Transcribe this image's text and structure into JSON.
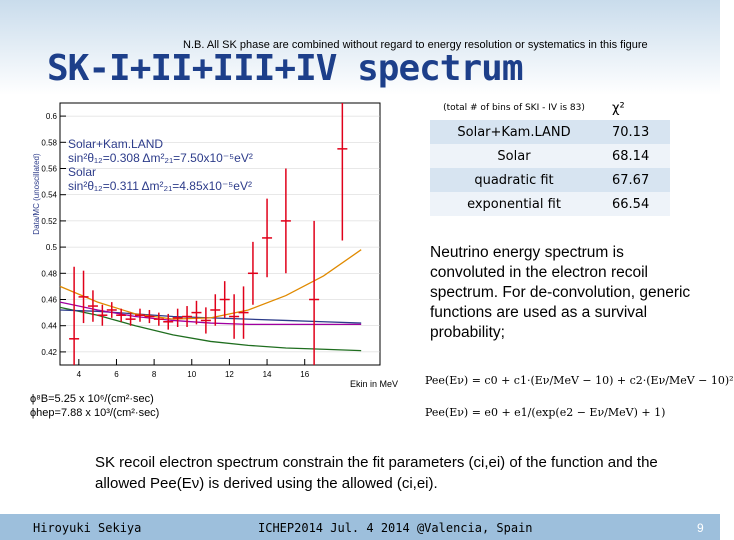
{
  "header": {
    "note": "N.B. All SK phase are combined without regard to energy resolution or systematics in this figure",
    "title": "SK-I+II+III+IV spectrum"
  },
  "legend": {
    "line1": "Solar+Kam.LAND",
    "line2": "sin²θ₁₂=0.308 Δm²₂₁=7.50x10⁻⁵eV²",
    "line3": "Solar",
    "line4": "sin²θ₁₂=0.311 Δm²₂₁=4.85x10⁻⁵eV²"
  },
  "flux": {
    "line1": "ϕ⁸B=5.25 x 10⁶/(cm²·sec)",
    "line2": "ϕhep=7.88 x 10³/(cm²·sec)"
  },
  "fit_table": {
    "header_note": "(total # of bins of SKI - IV is 83)",
    "header_chi": "χ²",
    "rows": [
      {
        "name": "Solar+Kam.LAND",
        "chi2": "70.13"
      },
      {
        "name": "Solar",
        "chi2": "68.14"
      },
      {
        "name": "quadratic fit",
        "chi2": "67.67"
      },
      {
        "name": "exponential fit",
        "chi2": "66.54"
      }
    ]
  },
  "description": "Neutrino energy spectrum is convoluted in the electron recoil spectrum. For de-convolution, generic functions are used as a survival probability;",
  "formula": {
    "row1": "Pee(Eν) = c0 + c1·(Eν/MeV − 10) + c2·(Eν/MeV − 10)²",
    "row2": "Pee(Eν) = e0 + e1/(exp(e2 − Eν/MeV) + 1)"
  },
  "bottom_text": "SK recoil electron spectrum constrain the fit parameters (ci,ei) of the function and the allowed Pee(Eν) is derived using the allowed (ci,ei).",
  "footer": {
    "author": "Hiroyuki Sekiya",
    "event": "ICHEP2014  Jul. 4 2014  @Valencia, Spain",
    "page": "9"
  },
  "colors": {
    "title": "#1d3f8a",
    "footer_bar": "#9dbfdc",
    "data": "#e0001a",
    "solar_kamland": "#1f6e1f",
    "solar": "#2d3c8a",
    "quadratic": "#e08a00",
    "exponential": "#a000a0"
  },
  "chart_data": {
    "type": "scatter",
    "ylabel": "Data/MC (unoscillated)",
    "xlabel": "Ekin in MeV",
    "xlim": [
      3,
      20
    ],
    "ylim": [
      0.41,
      0.61
    ],
    "x_ticks": [
      "4",
      "6",
      "8",
      "10",
      "12",
      "14",
      "16"
    ],
    "y_ticks": [
      "0.42",
      "0.44",
      "0.46",
      "0.48",
      "0.5",
      "0.52",
      "0.54",
      "0.56",
      "0.58",
      "0.6"
    ],
    "data_points": [
      {
        "x": 3.75,
        "y": 0.43,
        "err": 0.055
      },
      {
        "x": 4.25,
        "y": 0.462,
        "err": 0.02
      },
      {
        "x": 4.75,
        "y": 0.455,
        "err": 0.012
      },
      {
        "x": 5.25,
        "y": 0.448,
        "err": 0.008
      },
      {
        "x": 5.75,
        "y": 0.452,
        "err": 0.006
      },
      {
        "x": 6.25,
        "y": 0.448,
        "err": 0.005
      },
      {
        "x": 6.75,
        "y": 0.445,
        "err": 0.005
      },
      {
        "x": 7.25,
        "y": 0.448,
        "err": 0.005
      },
      {
        "x": 7.75,
        "y": 0.447,
        "err": 0.005
      },
      {
        "x": 8.25,
        "y": 0.445,
        "err": 0.005
      },
      {
        "x": 8.75,
        "y": 0.443,
        "err": 0.006
      },
      {
        "x": 9.25,
        "y": 0.446,
        "err": 0.007
      },
      {
        "x": 9.75,
        "y": 0.447,
        "err": 0.008
      },
      {
        "x": 10.25,
        "y": 0.45,
        "err": 0.009
      },
      {
        "x": 10.75,
        "y": 0.444,
        "err": 0.01
      },
      {
        "x": 11.25,
        "y": 0.452,
        "err": 0.012
      },
      {
        "x": 11.75,
        "y": 0.46,
        "err": 0.014
      },
      {
        "x": 12.25,
        "y": 0.447,
        "err": 0.017
      },
      {
        "x": 12.75,
        "y": 0.45,
        "err": 0.02
      },
      {
        "x": 13.25,
        "y": 0.48,
        "err": 0.024
      },
      {
        "x": 14.0,
        "y": 0.507,
        "err": 0.03
      },
      {
        "x": 15.0,
        "y": 0.52,
        "err": 0.04
      },
      {
        "x": 16.5,
        "y": 0.46,
        "err": 0.06
      },
      {
        "x": 18.0,
        "y": 0.575,
        "err": 0.07
      }
    ],
    "series": [
      {
        "name": "Solar+Kam.LAND",
        "x": [
          3,
          5,
          7,
          9,
          11,
          13,
          15,
          17,
          19
        ],
        "y": [
          0.454,
          0.448,
          0.44,
          0.433,
          0.428,
          0.425,
          0.423,
          0.422,
          0.421
        ]
      },
      {
        "name": "Solar",
        "x": [
          3,
          5,
          7,
          9,
          11,
          13,
          15,
          17,
          19
        ],
        "y": [
          0.452,
          0.451,
          0.449,
          0.447,
          0.446,
          0.445,
          0.444,
          0.443,
          0.442
        ]
      },
      {
        "name": "quadratic fit",
        "x": [
          3,
          5,
          7,
          9,
          11,
          13,
          15,
          17,
          19
        ],
        "y": [
          0.47,
          0.458,
          0.449,
          0.445,
          0.446,
          0.452,
          0.463,
          0.478,
          0.498
        ]
      },
      {
        "name": "exponential fit",
        "x": [
          3,
          5,
          7,
          9,
          11,
          13,
          15,
          17,
          19
        ],
        "y": [
          0.458,
          0.452,
          0.447,
          0.444,
          0.442,
          0.441,
          0.441,
          0.441,
          0.441
        ]
      }
    ]
  }
}
